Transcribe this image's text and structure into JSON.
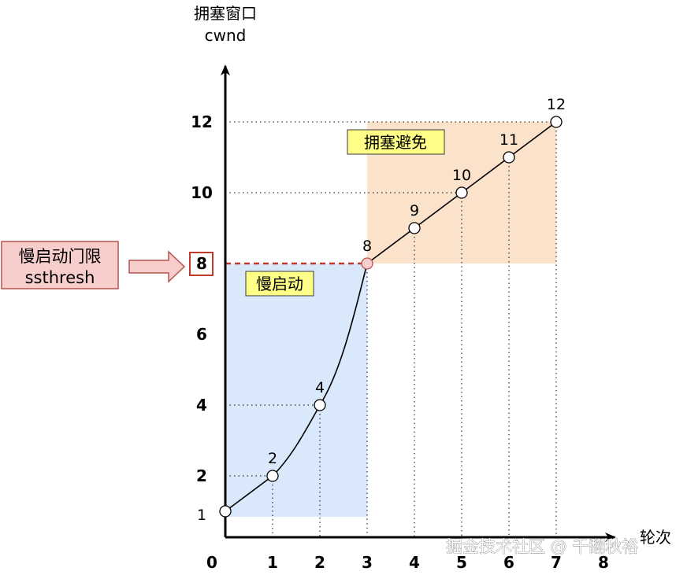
{
  "chart_data": {
    "type": "line",
    "title": "",
    "ylabel": "拥塞窗口",
    "ylabel_sub": "cwnd",
    "xlabel": "轮次",
    "x_ticks": [
      "0",
      "1",
      "2",
      "3",
      "4",
      "5",
      "6",
      "7",
      "8"
    ],
    "y_ticks": [
      "2",
      "4",
      "6",
      "8",
      "10",
      "12"
    ],
    "y_base_label": "1",
    "xlim": [
      0,
      8
    ],
    "ylim": [
      0,
      12
    ],
    "series": [
      {
        "x": [
          0,
          1,
          2,
          3,
          4,
          5,
          6,
          7
        ],
        "y": [
          1,
          2,
          4,
          8,
          9,
          10,
          11,
          12
        ],
        "labels": [
          "",
          "2",
          "4",
          "8",
          "9",
          "10",
          "11",
          "12"
        ]
      }
    ],
    "regions": [
      {
        "label": "慢启动",
        "x_range": [
          0,
          3
        ],
        "color": "#dae8fc"
      },
      {
        "label": "拥塞避免",
        "x_range": [
          3,
          7
        ],
        "color": "#fbe3cb"
      }
    ],
    "threshold": {
      "value": 8,
      "label_line1": "慢启动门限",
      "label_line2": "ssthresh",
      "color": "#c0392b"
    },
    "grid": false
  },
  "watermark": "掘金技术社区 @ 千翻秋裕"
}
